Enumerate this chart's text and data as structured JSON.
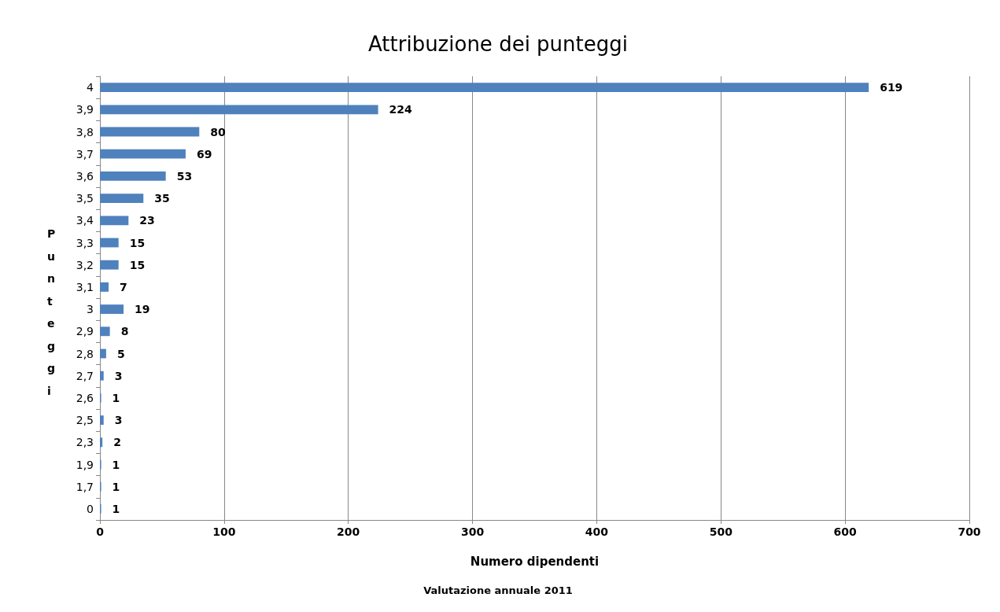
{
  "chart_data": {
    "type": "bar",
    "orientation": "horizontal",
    "title": "Attribuzione dei punteggi",
    "xlabel": "Numero dipendenti",
    "ylabel": "Punteggi",
    "annotations": [
      "Valutazione annuale 2011"
    ],
    "categories": [
      "4",
      "3,9",
      "3,8",
      "3,7",
      "3,6",
      "3,5",
      "3,4",
      "3,3",
      "3,2",
      "3,1",
      "3",
      "2,9",
      "2,8",
      "2,7",
      "2,6",
      "2,5",
      "2,3",
      "1,9",
      "1,7",
      "0"
    ],
    "values": [
      619,
      224,
      80,
      69,
      53,
      35,
      23,
      15,
      15,
      7,
      19,
      8,
      5,
      3,
      1,
      3,
      2,
      1,
      1,
      1
    ],
    "color": "#4f81bd",
    "xlim": [
      0,
      700
    ],
    "xticks": [
      0,
      100,
      200,
      300,
      400,
      500,
      600,
      700
    ],
    "grid": "x",
    "data_labels": true
  }
}
